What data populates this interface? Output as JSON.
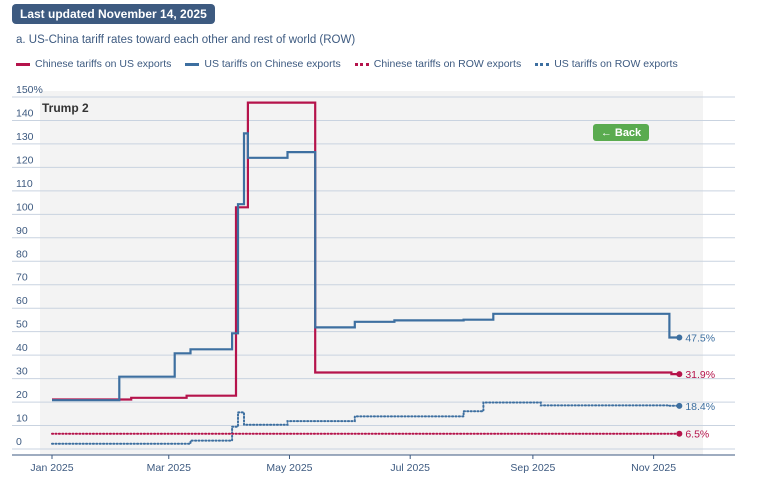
{
  "header": {
    "last_updated": "Last updated November 14, 2025"
  },
  "chart_data": {
    "type": "line",
    "title": "a. US-China tariff rates toward each other and rest of world (ROW)",
    "annotation_period": "Trump 2",
    "back_button_label": "← Back",
    "y_axis": {
      "min": 0,
      "max": 150,
      "ticks": [
        0,
        10,
        20,
        30,
        40,
        50,
        60,
        70,
        80,
        90,
        100,
        110,
        120,
        130,
        140,
        150
      ],
      "tick_labels": [
        "0",
        "10",
        "20",
        "30",
        "40",
        "50",
        "60",
        "70",
        "80",
        "90",
        "100",
        "110",
        "120",
        "130",
        "140",
        "150%"
      ]
    },
    "x_axis": {
      "range": [
        "2025-01-01",
        "2025-11-30"
      ],
      "ticks": [
        {
          "date": "2025-01-01",
          "label": "Jan 2025"
        },
        {
          "date": "2025-03-01",
          "label": "Mar 2025"
        },
        {
          "date": "2025-05-01",
          "label": "May 2025"
        },
        {
          "date": "2025-07-01",
          "label": "Jul 2025"
        },
        {
          "date": "2025-09-01",
          "label": "Sep 2025"
        },
        {
          "date": "2025-11-01",
          "label": "Nov 2025"
        }
      ]
    },
    "grid": true,
    "legend_position": "top",
    "series": [
      {
        "name": "Chinese tariffs on US exports",
        "color": "#b5134b",
        "style": "solid",
        "end_label": "31.9%",
        "points": [
          [
            "2025-01-01",
            21.1
          ],
          [
            "2025-02-10",
            21.1
          ],
          [
            "2025-02-10",
            21.8
          ],
          [
            "2025-03-10",
            21.8
          ],
          [
            "2025-03-10",
            22.7
          ],
          [
            "2025-04-04",
            22.7
          ],
          [
            "2025-04-04",
            103
          ],
          [
            "2025-04-10",
            103
          ],
          [
            "2025-04-10",
            147.6
          ],
          [
            "2025-05-14",
            147.6
          ],
          [
            "2025-05-14",
            32.6
          ],
          [
            "2025-11-10",
            32.6
          ],
          [
            "2025-11-10",
            31.9
          ],
          [
            "2025-11-14",
            31.9
          ]
        ]
      },
      {
        "name": "US tariffs on Chinese exports",
        "color": "#3d6fa0",
        "style": "solid",
        "end_label": "47.5%",
        "points": [
          [
            "2025-01-01",
            20.8
          ],
          [
            "2025-02-04",
            20.8
          ],
          [
            "2025-02-04",
            30.8
          ],
          [
            "2025-03-04",
            30.8
          ],
          [
            "2025-03-04",
            40.8
          ],
          [
            "2025-03-12",
            40.8
          ],
          [
            "2025-03-12",
            42.5
          ],
          [
            "2025-04-02",
            42.5
          ],
          [
            "2025-04-02",
            49.3
          ],
          [
            "2025-04-05",
            49.3
          ],
          [
            "2025-04-05",
            104.3
          ],
          [
            "2025-04-08",
            104.3
          ],
          [
            "2025-04-08",
            134.5
          ],
          [
            "2025-04-10",
            134.5
          ],
          [
            "2025-04-10",
            124.1
          ],
          [
            "2025-04-30",
            124.1
          ],
          [
            "2025-04-30",
            126.5
          ],
          [
            "2025-05-14",
            126.5
          ],
          [
            "2025-05-14",
            51.8
          ],
          [
            "2025-06-03",
            51.8
          ],
          [
            "2025-06-03",
            54.2
          ],
          [
            "2025-06-23",
            54.2
          ],
          [
            "2025-06-23",
            54.8
          ],
          [
            "2025-07-28",
            54.8
          ],
          [
            "2025-07-28",
            55.1
          ],
          [
            "2025-08-12",
            55.1
          ],
          [
            "2025-08-12",
            57.6
          ],
          [
            "2025-11-09",
            57.6
          ],
          [
            "2025-11-09",
            47.5
          ],
          [
            "2025-11-14",
            47.5
          ]
        ]
      },
      {
        "name": "Chinese tariffs on ROW exports",
        "color": "#b5134b",
        "style": "dotted",
        "end_label": "6.5%",
        "points": [
          [
            "2025-01-01",
            6.5
          ],
          [
            "2025-11-14",
            6.5
          ]
        ]
      },
      {
        "name": "US tariffs on ROW exports",
        "color": "#3d6fa0",
        "style": "dotted",
        "end_label": "18.4%",
        "points": [
          [
            "2025-01-01",
            2.2
          ],
          [
            "2025-03-12",
            2.2
          ],
          [
            "2025-03-12",
            3.6
          ],
          [
            "2025-04-02",
            3.6
          ],
          [
            "2025-04-02",
            9.5
          ],
          [
            "2025-04-05",
            9.5
          ],
          [
            "2025-04-05",
            15.6
          ],
          [
            "2025-04-08",
            15.6
          ],
          [
            "2025-04-08",
            10.3
          ],
          [
            "2025-04-30",
            10.3
          ],
          [
            "2025-04-30",
            11.9
          ],
          [
            "2025-06-03",
            11.9
          ],
          [
            "2025-06-03",
            13.9
          ],
          [
            "2025-07-28",
            13.9
          ],
          [
            "2025-07-28",
            16.1
          ],
          [
            "2025-08-07",
            16.1
          ],
          [
            "2025-08-07",
            19.8
          ],
          [
            "2025-09-05",
            19.8
          ],
          [
            "2025-09-05",
            18.6
          ],
          [
            "2025-11-09",
            18.6
          ],
          [
            "2025-11-09",
            18.4
          ],
          [
            "2025-11-14",
            18.4
          ]
        ]
      }
    ]
  }
}
